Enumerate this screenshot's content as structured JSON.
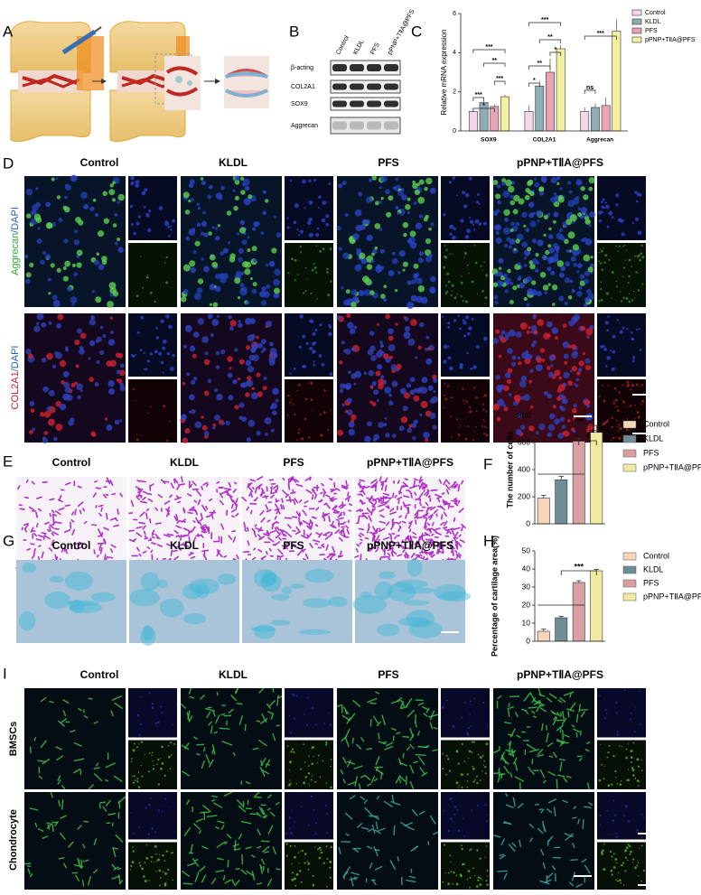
{
  "panel_labels": [
    "A",
    "B",
    "C",
    "D",
    "E",
    "F",
    "G",
    "H",
    "I"
  ],
  "western_blot": {
    "lanes": [
      "Control",
      "KLDL",
      "PFS",
      "pPNP+TⅡA@PFS"
    ],
    "proteins": [
      "β-acting",
      "COL2A1",
      "SOX9",
      "Aggrecan"
    ]
  },
  "panel_d": {
    "columns": [
      "Control",
      "KLDL",
      "PFS",
      "pPNP+TⅡA@PFS"
    ],
    "rows": [
      {
        "stain": "Aggrecan",
        "counter": "/DAPI"
      },
      {
        "stain": "COL2A1",
        "counter": "/DAPI"
      }
    ]
  },
  "panel_e": {
    "columns": [
      "Control",
      "KLDL",
      "PFS",
      "pPNP+TⅡA@PFS"
    ]
  },
  "panel_g": {
    "columns": [
      "Control",
      "KLDL",
      "PFS",
      "pPNP+TⅡA@PFS"
    ]
  },
  "panel_i": {
    "columns": [
      "Control",
      "KLDL",
      "PFS",
      "pPNP+TⅡA@PFS"
    ],
    "rows": [
      "BMSCs",
      "Chondrocyte"
    ]
  },
  "chart_data": [
    {
      "type": "grouped-bar",
      "y_label": "Relative mRNA expression",
      "categories": [
        "SOX9",
        "COL2A1",
        "Aggrecan"
      ],
      "series": [
        {
          "name": "Control",
          "color": "#f6d6e8",
          "values": [
            1.0,
            1.0,
            1.0
          ],
          "errors": [
            0.05,
            0.3,
            0.2
          ]
        },
        {
          "name": "KLDL",
          "color": "#8fadb5",
          "values": [
            1.45,
            2.3,
            1.2
          ],
          "errors": [
            0.1,
            0.25,
            0.2
          ]
        },
        {
          "name": "PFS",
          "color": "#e8a4b2",
          "values": [
            1.25,
            3.0,
            1.3
          ],
          "errors": [
            0.1,
            0.7,
            0.4
          ]
        },
        {
          "name": "pPNP+TⅡA@PFS",
          "color": "#f4f0a0",
          "values": [
            1.75,
            4.2,
            5.1
          ],
          "errors": [
            0.1,
            0.2,
            0.6
          ]
        }
      ],
      "ylim": [
        0,
        6
      ],
      "yticks": [
        0,
        2,
        4,
        6
      ],
      "annotations": [
        "***",
        "**",
        "***",
        "***",
        "*",
        "***",
        "**",
        "*",
        "**",
        "*",
        "***",
        "ns"
      ]
    },
    {
      "type": "bar",
      "y_label": "The number of cells",
      "categories": [
        "Control",
        "KLDL",
        "PFS",
        "pPNP+TⅡA@PFS"
      ],
      "values": [
        190,
        325,
        610,
        675
      ],
      "errors": [
        20,
        25,
        20,
        15
      ],
      "colors": [
        "#f7d5b8",
        "#6f8d97",
        "#d9a0a3",
        "#f0eba0"
      ],
      "ylim": [
        0,
        800
      ],
      "yticks": [
        0,
        200,
        400,
        600,
        800
      ],
      "annotations": [
        "***",
        "*"
      ]
    },
    {
      "type": "bar",
      "y_label": "Percentage of cartilage area(%)",
      "categories": [
        "Control",
        "KLDL",
        "PFS",
        "pPNP+TⅡA@PFS"
      ],
      "values": [
        5.5,
        13,
        32.5,
        39
      ],
      "errors": [
        1.2,
        0.8,
        1.0,
        0.8
      ],
      "colors": [
        "#f7d5b8",
        "#6f8d97",
        "#d9a0a3",
        "#f0eba0"
      ],
      "ylim": [
        0,
        50
      ],
      "yticks": [
        0,
        10,
        20,
        30,
        40,
        50
      ],
      "annotations": [
        "***"
      ]
    }
  ]
}
